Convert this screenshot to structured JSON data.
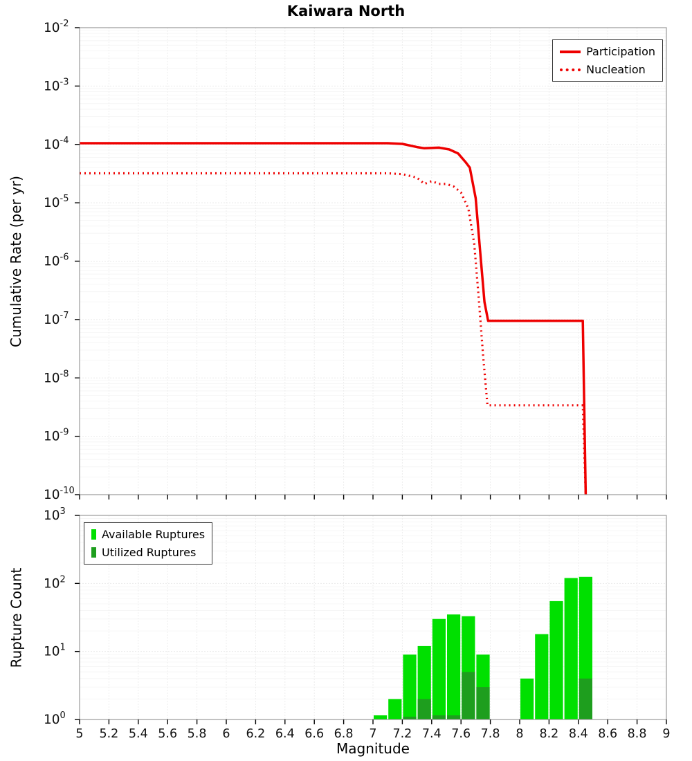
{
  "title": "Kaiwara North",
  "chart_data": [
    {
      "name": "cumulative-rate",
      "type": "line",
      "title": "Kaiwara North",
      "ylabel": "Cumulative Rate (per yr)",
      "yscale": "log",
      "xlim": [
        5,
        9
      ],
      "ylim": [
        1e-10,
        0.01
      ],
      "ytick_exps": [
        -2,
        -3,
        -4,
        -5,
        -6,
        -7,
        -8,
        -9,
        -10
      ],
      "xticks": [
        "5",
        "5.2",
        "5.4",
        "5.6",
        "5.8",
        "6",
        "6.2",
        "6.4",
        "6.6",
        "6.8",
        "7",
        "7.2",
        "7.4",
        "7.6",
        "7.8",
        "8",
        "8.2",
        "8.4",
        "8.6",
        "8.8",
        "9"
      ],
      "show_xtick_labels": false,
      "grid": true,
      "legend_position": "top-right",
      "series": [
        {
          "name": "Participation",
          "color": "#ee0000",
          "style": "solid",
          "points": [
            [
              5.0,
              0.000105
            ],
            [
              7.1,
              0.000105
            ],
            [
              7.2,
              0.000102
            ],
            [
              7.3,
              9e-05
            ],
            [
              7.35,
              8.6e-05
            ],
            [
              7.45,
              8.8e-05
            ],
            [
              7.52,
              8.2e-05
            ],
            [
              7.58,
              7e-05
            ],
            [
              7.63,
              5e-05
            ],
            [
              7.66,
              4e-05
            ],
            [
              7.7,
              1.2e-05
            ],
            [
              7.73,
              1.5e-06
            ],
            [
              7.76,
              2e-07
            ],
            [
              7.785,
              9.5e-08
            ],
            [
              8.43,
              9.5e-08
            ],
            [
              8.45,
              1e-10
            ]
          ]
        },
        {
          "name": "Nucleation",
          "color": "#ee0000",
          "style": "dotted",
          "points": [
            [
              5.0,
              3.2e-05
            ],
            [
              7.1,
              3.2e-05
            ],
            [
              7.2,
              3.1e-05
            ],
            [
              7.3,
              2.7e-05
            ],
            [
              7.35,
              2.1e-05
            ],
            [
              7.4,
              2.35e-05
            ],
            [
              7.45,
              2.1e-05
            ],
            [
              7.5,
              2.1e-05
            ],
            [
              7.55,
              1.9e-05
            ],
            [
              7.6,
              1.5e-05
            ],
            [
              7.65,
              8e-06
            ],
            [
              7.69,
              2e-06
            ],
            [
              7.72,
              2.5e-07
            ],
            [
              7.75,
              2.5e-08
            ],
            [
              7.78,
              3.4e-09
            ],
            [
              8.43,
              3.4e-09
            ],
            [
              8.45,
              1e-10
            ]
          ]
        }
      ]
    },
    {
      "name": "rupture-count",
      "type": "bar",
      "ylabel": "Rupture Count",
      "xlabel": "Magnitude",
      "yscale": "log",
      "xlim": [
        5,
        9
      ],
      "ylim": [
        1,
        1000
      ],
      "ytick_exps": [
        3,
        2,
        1,
        0
      ],
      "xticks": [
        "5",
        "5.2",
        "5.4",
        "5.6",
        "5.8",
        "6",
        "6.2",
        "6.4",
        "6.6",
        "6.8",
        "7",
        "7.2",
        "7.4",
        "7.6",
        "7.8",
        "8",
        "8.2",
        "8.4",
        "8.6",
        "8.8",
        "9"
      ],
      "show_xtick_labels": true,
      "grid": true,
      "bar_width": 0.1,
      "legend_position": "top-left",
      "series": [
        {
          "name": "Available Ruptures",
          "color": "#00e000",
          "bars": [
            [
              7.05,
              1.15
            ],
            [
              7.15,
              2
            ],
            [
              7.25,
              9
            ],
            [
              7.35,
              12
            ],
            [
              7.45,
              30
            ],
            [
              7.55,
              35
            ],
            [
              7.65,
              33
            ],
            [
              7.75,
              9
            ],
            [
              8.05,
              4
            ],
            [
              8.15,
              18
            ],
            [
              8.25,
              55
            ],
            [
              8.35,
              120
            ],
            [
              8.45,
              125
            ]
          ]
        },
        {
          "name": "Utilized Ruptures",
          "color": "#1e9e1e",
          "bars": [
            [
              7.25,
              1.1
            ],
            [
              7.35,
              2
            ],
            [
              7.45,
              1.15
            ],
            [
              7.55,
              1.15
            ],
            [
              7.65,
              5
            ],
            [
              7.75,
              3
            ],
            [
              8.45,
              4
            ]
          ]
        }
      ]
    }
  ]
}
